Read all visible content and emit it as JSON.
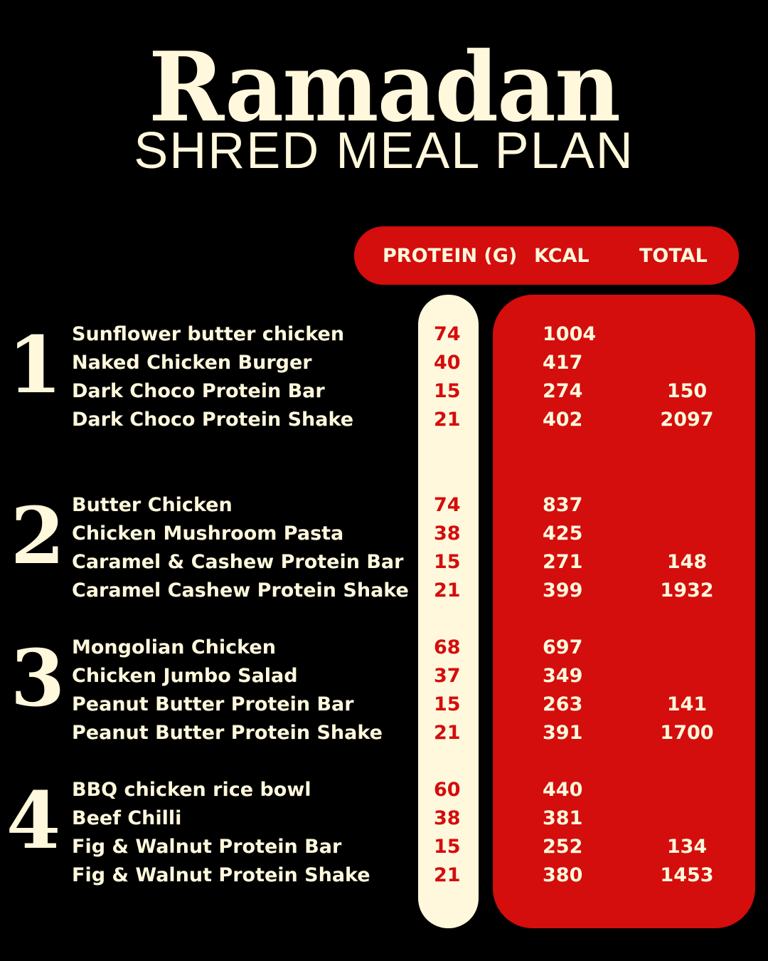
{
  "title": "Ramadan",
  "subtitle": "SHRED MEAL PLAN",
  "colors": {
    "background": "#000000",
    "cream": "#fff8dc",
    "red": "#d40d0d"
  },
  "headers": {
    "protein": "PROTEIN (G)",
    "kcal": "KCAL",
    "total": "TOTAL"
  },
  "days": [
    {
      "number": "1",
      "meals": [
        {
          "name": "Sunflower butter chicken",
          "protein": "74",
          "kcal": "1004",
          "total": ""
        },
        {
          "name": "Naked Chicken Burger",
          "protein": "40",
          "kcal": "417",
          "total": ""
        },
        {
          "name": "Dark Choco Protein Bar",
          "protein": "15",
          "kcal": "274",
          "total": "150"
        },
        {
          "name": "Dark Choco Protein Shake",
          "protein": "21",
          "kcal": "402",
          "total": "2097"
        }
      ]
    },
    {
      "number": "2",
      "meals": [
        {
          "name": "Butter Chicken",
          "protein": "74",
          "kcal": "837",
          "total": ""
        },
        {
          "name": "Chicken Mushroom Pasta",
          "protein": "38",
          "kcal": "425",
          "total": ""
        },
        {
          "name": "Caramel & Cashew Protein Bar",
          "protein": "15",
          "kcal": "271",
          "total": "148"
        },
        {
          "name": "Caramel Cashew Protein Shake",
          "protein": "21",
          "kcal": "399",
          "total": "1932"
        }
      ]
    },
    {
      "number": "3",
      "meals": [
        {
          "name": "Mongolian Chicken",
          "protein": "68",
          "kcal": "697",
          "total": ""
        },
        {
          "name": "Chicken Jumbo Salad",
          "protein": "37",
          "kcal": "349",
          "total": ""
        },
        {
          "name": "Peanut Butter Protein Bar",
          "protein": "15",
          "kcal": "263",
          "total": "141"
        },
        {
          "name": "Peanut Butter Protein Shake",
          "protein": "21",
          "kcal": "391",
          "total": "1700"
        }
      ]
    },
    {
      "number": "4",
      "meals": [
        {
          "name": "BBQ chicken rice bowl",
          "protein": "60",
          "kcal": "440",
          "total": ""
        },
        {
          "name": "Beef Chilli",
          "protein": "38",
          "kcal": "381",
          "total": ""
        },
        {
          "name": "Fig & Walnut Protein Bar",
          "protein": "15",
          "kcal": "252",
          "total": "134"
        },
        {
          "name": "Fig & Walnut Protein Shake",
          "protein": "21",
          "kcal": "380",
          "total": "1453"
        }
      ]
    }
  ]
}
